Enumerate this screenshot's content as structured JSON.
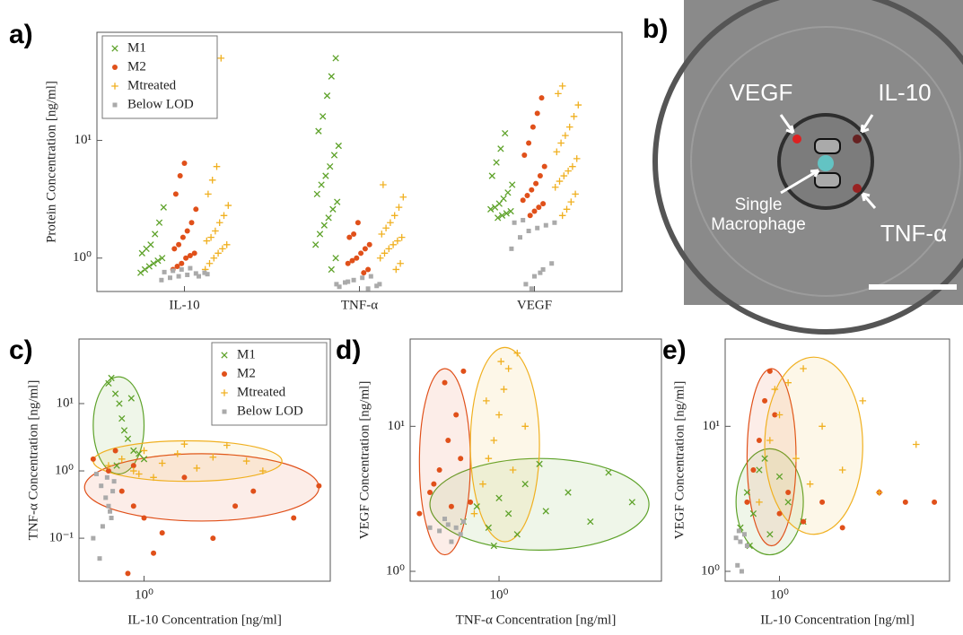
{
  "chart_data": [
    {
      "type": "swarm",
      "label": "a)",
      "ylabel": "Protein Concentration [ng/ml]",
      "categories": [
        "IL-10",
        "TNF-α",
        "VEGF"
      ],
      "yscale": "log",
      "ylim": [
        0.52,
        83
      ],
      "yticks": [
        {
          "value": 1,
          "label": "10⁰"
        },
        {
          "value": 10,
          "label": "10¹"
        }
      ],
      "legend": "upper left",
      "series": [
        {
          "name": "M1",
          "color": "#5ea22a",
          "marker": "x",
          "values": [
            [
              0.75,
              0.8,
              0.85,
              0.9,
              0.95,
              1.0,
              1.1,
              1.2,
              1.3,
              1.6,
              2.0,
              2.7
            ],
            [
              0.8,
              1.0,
              1.3,
              1.6,
              1.9,
              2.2,
              2.6,
              3.0,
              3.5,
              4.2,
              5,
              6,
              7.5,
              9,
              12,
              16,
              24,
              35,
              50
            ],
            [
              2.2,
              2.3,
              2.4,
              2.5,
              2.6,
              2.7,
              2.9,
              3.2,
              3.6,
              4.2,
              5.0,
              6.5,
              8.5,
              11.5
            ]
          ]
        },
        {
          "name": "M2",
          "color": "#e0501a",
          "marker": "o",
          "values": [
            [
              0.8,
              0.85,
              0.9,
              1.0,
              1.05,
              1.1,
              1.2,
              1.3,
              1.5,
              1.7,
              2.0,
              2.6,
              3.5,
              5,
              6.4
            ],
            [
              0.75,
              0.8,
              0.9,
              0.95,
              1.0,
              1.1,
              1.2,
              1.3,
              1.5,
              1.6,
              2.0
            ],
            [
              2.3,
              2.5,
              2.7,
              2.9,
              3.1,
              3.4,
              3.8,
              4.3,
              5,
              6,
              7.5,
              9.5,
              13,
              17,
              23
            ]
          ]
        },
        {
          "name": "Mtreated",
          "color": "#f0b020",
          "marker": "+",
          "values": [
            [
              0.8,
              0.9,
              1.0,
              1.1,
              1.2,
              1.3,
              1.4,
              1.5,
              1.7,
              2.0,
              2.3,
              2.8,
              3.5,
              4.6,
              6.0,
              50
            ],
            [
              0.8,
              0.9,
              1.0,
              1.1,
              1.2,
              1.3,
              1.4,
              1.5,
              1.6,
              1.8,
              2.0,
              2.3,
              2.7,
              3.3,
              4.2
            ],
            [
              2.3,
              2.6,
              3.0,
              3.5,
              4.0,
              4.5,
              5.0,
              5.5,
              6,
              7,
              8,
              9.5,
              11,
              13,
              16,
              20,
              25,
              29
            ]
          ]
        },
        {
          "name": "Below LOD",
          "color": "#aaaaaa",
          "marker": "s",
          "values": [
            [
              0.65,
              0.68,
              0.7,
              0.72,
              0.74,
              0.75,
              0.76,
              0.78,
              0.8,
              0.82,
              0.7,
              0.73
            ],
            [
              0.55,
              0.58,
              0.6,
              0.62,
              0.65,
              0.68,
              0.7,
              0.6,
              0.57,
              0.63
            ],
            [
              0.6,
              0.7,
              0.8,
              0.9,
              1.2,
              1.5,
              1.7,
              1.8,
              1.9,
              2.0,
              2.0,
              2.1,
              0.55,
              0.75
            ]
          ]
        }
      ]
    },
    {
      "type": "scatter",
      "label": "c)",
      "xlabel": "IL-10 Concentration [ng/ml]",
      "ylabel": "TNF-α Concentration [ng/ml]",
      "xscale": "log",
      "yscale": "log",
      "xlim": [
        0.52,
        6.5
      ],
      "ylim": [
        0.023,
        91
      ],
      "xticks": [
        {
          "value": 1,
          "label": "10⁰"
        }
      ],
      "yticks": [
        {
          "value": 0.1,
          "label": "10⁻¹"
        },
        {
          "value": 1,
          "label": "10⁰"
        },
        {
          "value": 10,
          "label": "10¹"
        }
      ],
      "legend": "upper right",
      "series": [
        {
          "name": "M1",
          "color": "#5ea22a",
          "marker": "x",
          "x": [
            0.7,
            0.72,
            0.75,
            0.78,
            0.8,
            0.82,
            0.85,
            0.9,
            0.95,
            1.0,
            0.88,
            0.76
          ],
          "values": [
            20,
            24,
            14,
            10,
            6,
            4,
            3,
            2,
            1.8,
            1.5,
            12,
            1.2
          ],
          "ellipse": {
            "x": [
              0.6,
              1.0
            ],
            "y": [
              0.9,
              25
            ]
          }
        },
        {
          "name": "M2",
          "color": "#e0501a",
          "marker": "o",
          "x": [
            0.6,
            0.7,
            0.8,
            0.9,
            1.0,
            1.2,
            1.5,
            2.0,
            3.0,
            4.5,
            5.8,
            0.85,
            1.1,
            0.9,
            0.75,
            2.5
          ],
          "values": [
            1.5,
            1.0,
            0.5,
            0.3,
            0.2,
            0.12,
            0.8,
            0.1,
            0.5,
            0.2,
            0.6,
            0.03,
            0.06,
            1.2,
            2.0,
            0.3
          ],
          "ellipse": {
            "x": [
              0.55,
              5.8
            ],
            "y": [
              0.18,
              1.8
            ]
          }
        },
        {
          "name": "Mtreated",
          "color": "#f0b020",
          "marker": "+",
          "x": [
            0.7,
            0.8,
            0.9,
            1.0,
            1.2,
            1.4,
            1.7,
            2.0,
            2.3,
            2.8,
            3.3,
            1.1,
            1.5,
            0.95
          ],
          "values": [
            1.2,
            1.5,
            1.0,
            2.0,
            1.3,
            1.8,
            1.1,
            1.6,
            2.4,
            1.4,
            1.0,
            0.8,
            2.5,
            0.9
          ],
          "ellipse": {
            "x": [
              0.6,
              4.0
            ],
            "y": [
              0.7,
              2.8
            ]
          }
        },
        {
          "name": "Below LOD",
          "color": "#aaaaaa",
          "marker": "s",
          "x": [
            0.62,
            0.65,
            0.68,
            0.7,
            0.72,
            0.66,
            0.6,
            0.74,
            0.64,
            0.69,
            0.71,
            0.73
          ],
          "values": [
            0.9,
            0.6,
            0.4,
            0.3,
            0.2,
            0.15,
            0.1,
            0.7,
            0.05,
            0.8,
            0.25,
            0.5
          ]
        }
      ]
    },
    {
      "type": "scatter",
      "label": "d)",
      "xlabel": "TNF-α Concentration [ng/ml]",
      "ylabel": "VEGF Concentration [ng/ml]",
      "xscale": "log",
      "yscale": "log",
      "xlim": [
        0.41,
        5.1
      ],
      "ylim": [
        0.855,
        40
      ],
      "xticks": [
        {
          "value": 1,
          "label": "10⁰"
        }
      ],
      "yticks": [
        {
          "value": 1,
          "label": "10⁰"
        },
        {
          "value": 10,
          "label": "10¹"
        }
      ],
      "series": [
        {
          "color": "#5ea22a",
          "marker": "x",
          "x": [
            0.7,
            0.8,
            0.9,
            1.0,
            1.1,
            1.3,
            1.6,
            2.0,
            2.5,
            3.0,
            3.8,
            1.2,
            0.95,
            1.5
          ],
          "values": [
            2.2,
            2.8,
            2.0,
            3.2,
            2.5,
            4.0,
            2.6,
            3.5,
            2.2,
            4.8,
            3.0,
            1.8,
            1.5,
            5.5
          ],
          "ellipse": {
            "x": [
              0.5,
              4.5
            ],
            "y": [
              1.4,
              6
            ]
          }
        },
        {
          "color": "#e0501a",
          "marker": "o",
          "x": [
            0.45,
            0.5,
            0.55,
            0.6,
            0.65,
            0.7,
            0.75,
            0.58,
            0.52,
            0.62,
            0.68
          ],
          "values": [
            2.5,
            3.5,
            5,
            8,
            12,
            24,
            3,
            20,
            4,
            2.8,
            6
          ],
          "ellipse": {
            "x": [
              0.45,
              0.75
            ],
            "y": [
              1.3,
              25
            ]
          }
        },
        {
          "color": "#f0b020",
          "marker": "+",
          "x": [
            0.78,
            0.85,
            0.9,
            0.95,
            1.0,
            1.05,
            1.1,
            1.2,
            1.3,
            0.88,
            1.02,
            1.15
          ],
          "values": [
            2.5,
            4,
            6,
            8,
            12,
            18,
            25,
            32,
            10,
            15,
            28,
            5
          ],
          "ellipse": {
            "x": [
              0.75,
              1.5
            ],
            "y": [
              1.6,
              35
            ]
          }
        },
        {
          "color": "#aaaaaa",
          "marker": "s",
          "x": [
            0.5,
            0.55,
            0.6,
            0.65,
            0.7,
            0.62,
            0.58,
            0.68
          ],
          "values": [
            2.0,
            1.9,
            2.1,
            2.0,
            2.2,
            1.6,
            2.3,
            1.8
          ]
        }
      ]
    },
    {
      "type": "scatter",
      "label": "e)",
      "xlabel": "IL-10 Concentration [ng/ml]",
      "ylabel": "VEGF Concentration [ng/ml]",
      "xscale": "log",
      "yscale": "log",
      "xlim": [
        0.55,
        6.5
      ],
      "ylim": [
        0.855,
        40
      ],
      "xticks": [
        {
          "value": 1,
          "label": "10⁰"
        }
      ],
      "yticks": [
        {
          "value": 1,
          "label": "10⁰"
        },
        {
          "value": 10,
          "label": "10¹"
        }
      ],
      "series": [
        {
          "color": "#5ea22a",
          "marker": "x",
          "x": [
            0.65,
            0.7,
            0.75,
            0.8,
            0.9,
            1.0,
            1.1,
            1.3,
            0.85,
            0.72
          ],
          "values": [
            2.0,
            3.5,
            2.5,
            5,
            1.8,
            4.5,
            3,
            2.2,
            6,
            1.5
          ],
          "ellipse": {
            "x": [
              0.62,
              1.3
            ],
            "y": [
              1.3,
              7
            ]
          }
        },
        {
          "color": "#e0501a",
          "marker": "o",
          "x": [
            0.7,
            0.75,
            0.8,
            0.85,
            0.9,
            1.0,
            1.1,
            1.3,
            1.6,
            2.0,
            3.0,
            4.0,
            5.5,
            0.95
          ],
          "values": [
            3,
            5,
            8,
            15,
            24,
            2.5,
            3.5,
            2.2,
            3,
            2.0,
            3.5,
            3.0,
            3.0,
            12
          ],
          "ellipse": {
            "x": [
              0.7,
              1.2
            ],
            "y": [
              1.5,
              25
            ]
          }
        },
        {
          "color": "#f0b020",
          "marker": "+",
          "x": [
            0.8,
            0.9,
            1.0,
            1.1,
            1.2,
            1.4,
            1.6,
            2.0,
            2.5,
            3.0,
            4.5,
            1.3,
            0.95
          ],
          "values": [
            3,
            8,
            12,
            20,
            6,
            4,
            10,
            5,
            15,
            3.5,
            7.5,
            25,
            18
          ],
          "ellipse": {
            "x": [
              0.85,
              2.5
            ],
            "y": [
              1.8,
              30
            ]
          }
        },
        {
          "color": "#aaaaaa",
          "marker": "s",
          "x": [
            0.62,
            0.65,
            0.68,
            0.7,
            0.66,
            0.63,
            0.64
          ],
          "values": [
            1.7,
            1.6,
            1.8,
            1.5,
            1.0,
            1.1,
            1.9
          ]
        }
      ]
    }
  ],
  "image_panel": {
    "label": "b)",
    "annotations": {
      "vegf": "VEGF",
      "il10": "IL-10",
      "cell": "Single Macrophage",
      "tnf": "TNF-α"
    }
  }
}
